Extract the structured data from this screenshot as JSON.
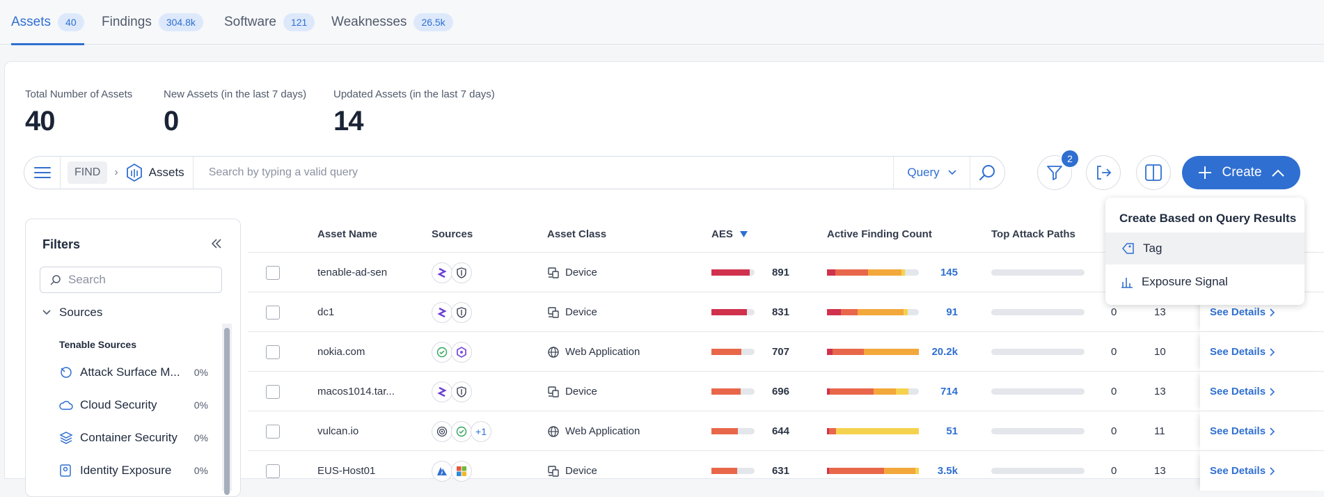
{
  "tabs": [
    {
      "label": "Assets",
      "count": "40"
    },
    {
      "label": "Findings",
      "count": "304.8k"
    },
    {
      "label": "Software",
      "count": "121"
    },
    {
      "label": "Weaknesses",
      "count": "26.5k"
    }
  ],
  "stats": [
    {
      "label": "Total Number of Assets",
      "value": "40"
    },
    {
      "label": "New Assets (in the last 7 days)",
      "value": "0"
    },
    {
      "label": "Updated Assets (in the last 7 days)",
      "value": "14"
    }
  ],
  "searchbar": {
    "find_label": "FIND",
    "scope_label": "Assets",
    "placeholder": "Search by typing a valid query",
    "query_label": "Query"
  },
  "toolbar": {
    "filter_badge": "2",
    "create_label": "Create"
  },
  "filters": {
    "title": "Filters",
    "search_placeholder": "Search",
    "group_label": "Sources",
    "subgroup_label": "Tenable Sources",
    "items": [
      {
        "label": "Attack Surface M...",
        "pct": "0%"
      },
      {
        "label": "Cloud Security",
        "pct": "0%"
      },
      {
        "label": "Container Security",
        "pct": "0%"
      },
      {
        "label": "Identity Exposure",
        "pct": "0%"
      }
    ]
  },
  "table": {
    "headers": {
      "asset_name": "Asset Name",
      "sources": "Sources",
      "asset_class": "Asset Class",
      "aes": "AES",
      "active_finding_count": "Active Finding Count",
      "top_attack_paths": "Top Attack Paths"
    },
    "details_label": "See Details",
    "rows": [
      {
        "name": "tenable-ad-sen",
        "sources": [
          "tenable",
          "shield"
        ],
        "extra": "",
        "class": "Device",
        "class_icon": "device",
        "aes": "891",
        "aes_fraction": 0.89,
        "aes_color": "#d0324d",
        "fc": "145",
        "fc_segments": [
          0.09,
          0.36,
          0.36,
          0.04
        ],
        "tap": "",
        "col7": "",
        "col8": ""
      },
      {
        "name": "dc1",
        "sources": [
          "tenable",
          "shield"
        ],
        "extra": "",
        "class": "Device",
        "class_icon": "device",
        "aes": "831",
        "aes_fraction": 0.83,
        "aes_color": "#d0324d",
        "fc": "91",
        "fc_segments": [
          0.15,
          0.18,
          0.5,
          0.05
        ],
        "tap": "",
        "col7": "0",
        "col8": "13"
      },
      {
        "name": "nokia.com",
        "sources": [
          "check",
          "hex"
        ],
        "extra": "",
        "class": "Web Application",
        "class_icon": "globe",
        "aes": "707",
        "aes_fraction": 0.7,
        "aes_color": "#e8674b",
        "fc": "20.2k",
        "fc_segments": [
          0.06,
          0.34,
          0.6,
          0
        ],
        "tap": "",
        "col7": "0",
        "col8": "10"
      },
      {
        "name": "macos1014.tar...",
        "sources": [
          "tenable",
          "shield"
        ],
        "extra": "",
        "class": "Device",
        "class_icon": "device",
        "aes": "696",
        "aes_fraction": 0.68,
        "aes_color": "#e8674b",
        "fc": "714",
        "fc_segments": [
          0.03,
          0.48,
          0.24,
          0.14
        ],
        "tap": "",
        "col7": "0",
        "col8": "13"
      },
      {
        "name": "vulcan.io",
        "sources": [
          "radar",
          "check"
        ],
        "extra": "+1",
        "class": "Web Application",
        "class_icon": "globe",
        "aes": "644",
        "aes_fraction": 0.62,
        "aes_color": "#e8674b",
        "fc": "51",
        "fc_segments": [
          0.02,
          0.08,
          0,
          0.9
        ],
        "tap": "",
        "col7": "0",
        "col8": "11"
      },
      {
        "name": "EUS-Host01",
        "sources": [
          "azure",
          "windows"
        ],
        "extra": "",
        "class": "Device",
        "class_icon": "device",
        "aes": "631",
        "aes_fraction": 0.6,
        "aes_color": "#e8674b",
        "fc": "3.5k",
        "fc_segments": [
          0.02,
          0.6,
          0.34,
          0.04
        ],
        "tap": "",
        "col7": "0",
        "col8": "13"
      }
    ]
  },
  "dropdown": {
    "title": "Create Based on Query Results",
    "items": [
      {
        "label": "Tag"
      },
      {
        "label": "Exposure Signal"
      }
    ]
  },
  "colors": {
    "accent": "#2f6fd1",
    "critical": "#d0324d",
    "high": "#e8674b",
    "medium": "#f2a83b",
    "low": "#f5d24e"
  }
}
